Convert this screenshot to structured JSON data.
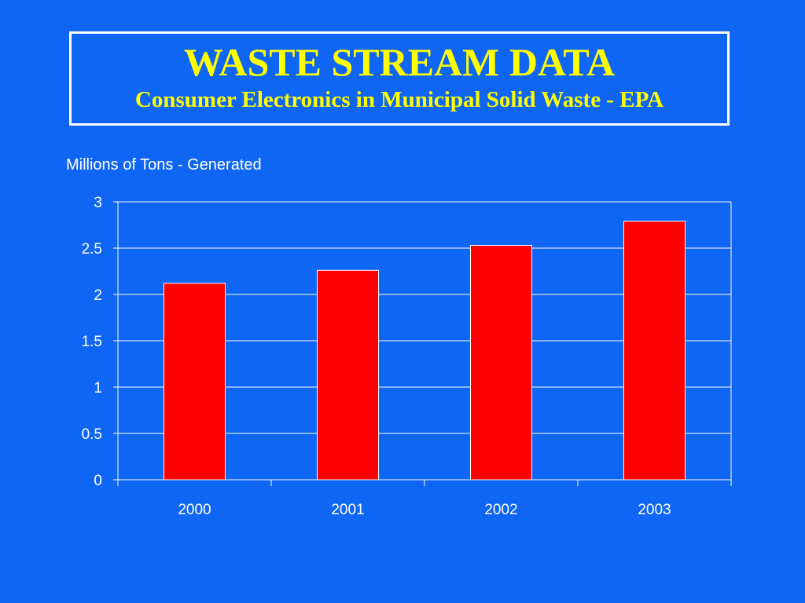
{
  "header": {
    "title": "WASTE STREAM DATA",
    "subtitle": "Consumer Electronics in Municipal Solid Waste - EPA"
  },
  "colors": {
    "background": "#0f66f4",
    "title_text": "#ffff00",
    "bar_fill": "#ff0000",
    "grid": "#ffffff"
  },
  "chart_data": {
    "type": "bar",
    "title": "WASTE STREAM DATA",
    "subtitle": "Consumer Electronics in Municipal Solid Waste - EPA",
    "ylabel": "Millions of Tons - Generated",
    "xlabel": "",
    "categories": [
      "2000",
      "2001",
      "2002",
      "2003"
    ],
    "values": [
      2.12,
      2.26,
      2.53,
      2.79
    ],
    "ylim": [
      0,
      3
    ],
    "yticks": [
      "0",
      "0.5",
      "1",
      "1.5",
      "2",
      "2.5",
      "3"
    ],
    "grid": true,
    "legend": "none"
  }
}
